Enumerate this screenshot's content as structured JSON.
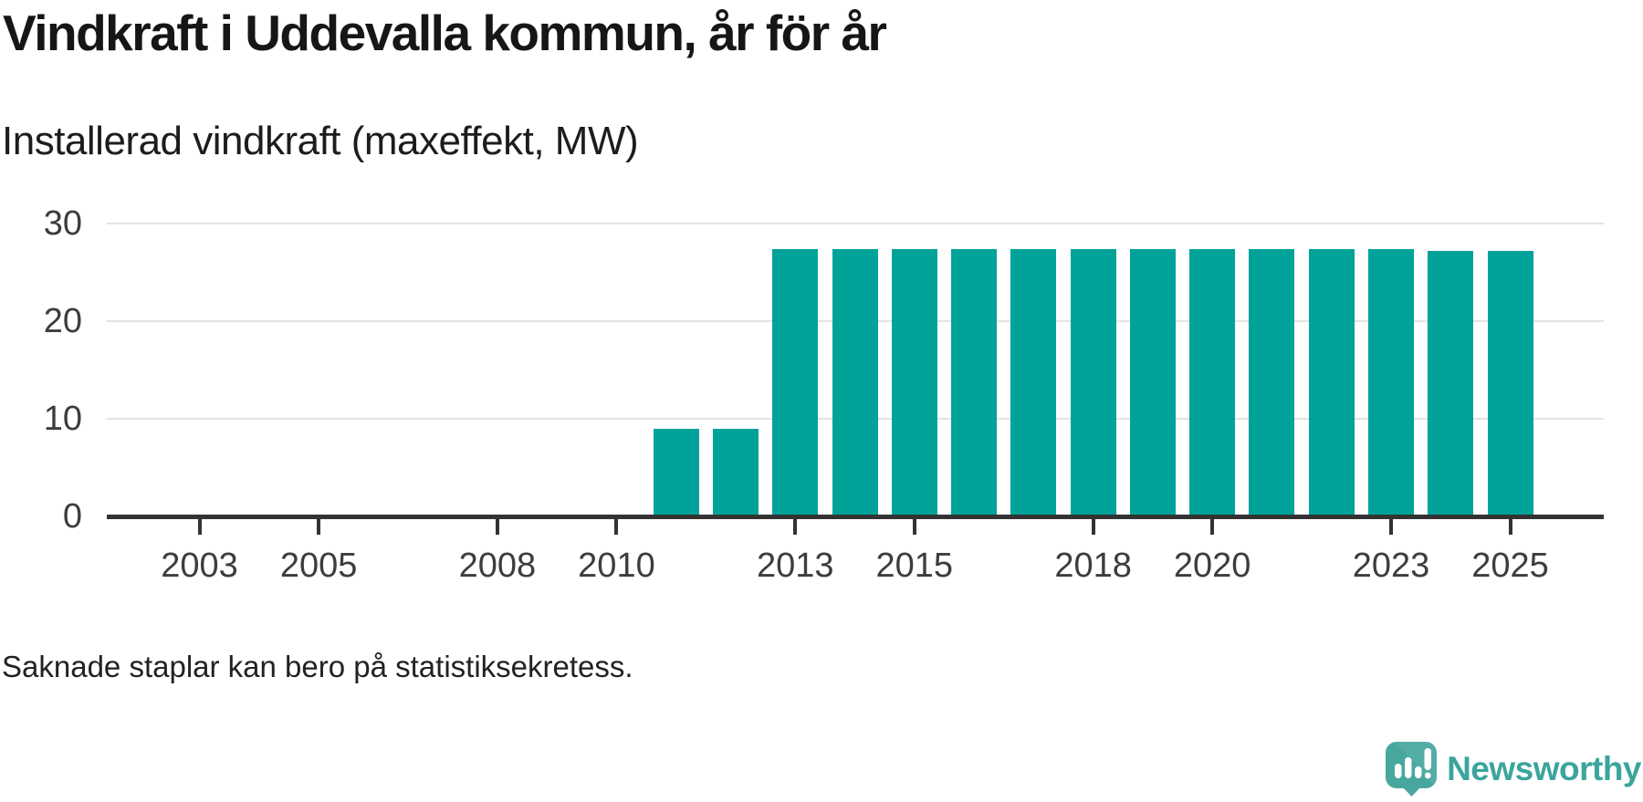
{
  "title": "Vindkraft i Uddevalla kommun, år för år",
  "subtitle": "Installerad vindkraft (maxeffekt, MW)",
  "footnote": "Saknade staplar kan bero på statistiksekretess.",
  "branding": {
    "name": "Newsworthy",
    "logo_icon": "speech-bubble-bar-chart-icon",
    "icon_color": "#47a79f",
    "text_color": "#3ba59d"
  },
  "colors": {
    "bar": "#00a29a",
    "axis": "#333333",
    "gridline": "#e3e3e3",
    "tick_label": "#3d3d3d"
  },
  "chart_data": {
    "type": "bar",
    "title": "Vindkraft i Uddevalla kommun, år för år",
    "subtitle": "Installerad vindkraft (maxeffekt, MW)",
    "xlabel": "",
    "ylabel": "Installerad vindkraft (maxeffekt, MW)",
    "categories": [
      2002,
      2003,
      2004,
      2005,
      2006,
      2007,
      2008,
      2009,
      2010,
      2011,
      2012,
      2013,
      2014,
      2015,
      2016,
      2017,
      2018,
      2019,
      2020,
      2021,
      2022,
      2023,
      2024,
      2025
    ],
    "values": [
      null,
      null,
      null,
      null,
      null,
      null,
      null,
      null,
      null,
      9,
      9,
      27.3,
      27.3,
      27.3,
      27.3,
      27.3,
      27.3,
      27.3,
      27.3,
      27.3,
      27.3,
      27.3,
      27.2,
      27.2
    ],
    "ylim": [
      0,
      30
    ],
    "yticks": [
      0,
      10,
      20,
      30
    ],
    "xtick_labels": [
      2003,
      2005,
      2008,
      2010,
      2013,
      2015,
      2018,
      2020,
      2023,
      2025
    ],
    "grid": "horizontal",
    "legend": "none",
    "note": "Missing bars for 2002–2010; values in MW"
  }
}
